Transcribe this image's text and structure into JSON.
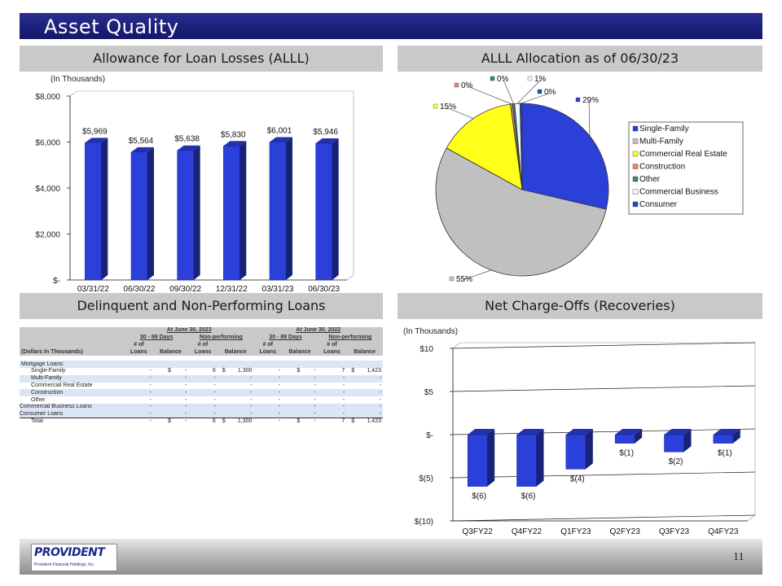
{
  "page": {
    "title": "Asset Quality",
    "page_number": "11",
    "logo_name": "PROVIDENT",
    "logo_sub": "Provident Financial Holdings, Inc."
  },
  "alll_chart": {
    "heading": "Allowance for Loan Losses (ALLL)",
    "unit_note": "(In Thousands)",
    "yticks": [
      "$8,000",
      "$6,000",
      "$4,000",
      "$2,000",
      "$-"
    ],
    "bar_labels": [
      "$5,969",
      "$5,564",
      "$5,638",
      "$5,830",
      "$6,001",
      "$5,946"
    ],
    "x_labels": [
      "03/31/22",
      "06/30/22",
      "09/30/22",
      "12/31/22",
      "03/31/23",
      "06/30/23"
    ]
  },
  "pie_chart": {
    "heading": "ALLL Allocation as of 06/30/23",
    "slice_labels": [
      "29%",
      "55%",
      "15%",
      "0%",
      "0%",
      "1%",
      "0%"
    ],
    "legend": [
      "Single-Family",
      "Multi-Family",
      "Commercial Real Estate",
      "Construction",
      "Other",
      "Commercial Business",
      "Consumer"
    ]
  },
  "nco_chart": {
    "heading": "Net Charge-Offs (Recoveries)",
    "unit_note": "(In Thousands)",
    "yticks": [
      "$10",
      "$5",
      "$-",
      "$(5)",
      "$(10)"
    ],
    "bar_labels": [
      "$(6)",
      "$(6)",
      "$(4)",
      "$(1)",
      "$(2)",
      "$(1)"
    ],
    "x_labels": [
      "Q3FY22",
      "Q4FY22",
      "Q1FY23",
      "Q2FY23",
      "Q3FY23",
      "Q4FY23"
    ]
  },
  "delinquency_table": {
    "heading": "Delinquent and Non-Performing Loans",
    "period_2023": "At June 30, 2023",
    "period_2022": "At June 30, 2022",
    "days_label": "30 - 89 Days",
    "np_label": "Non-performing",
    "of_label": "# of",
    "loans_label": "Loans",
    "balance_label": "Balance",
    "dollars_label": "(Dollars In Thousands)",
    "section_label": "Mortgage Loans:",
    "rows": [
      {
        "label": "Single-Family",
        "c": [
          "-",
          "$",
          "-",
          "6",
          "$",
          "1,300",
          "-",
          "$",
          "-",
          "7",
          "$",
          "1,423"
        ]
      },
      {
        "label": "Multi-Family",
        "c": [
          "-",
          "",
          "-",
          "-",
          "",
          "-",
          "-",
          "",
          "-",
          "-",
          "",
          "-"
        ]
      },
      {
        "label": "Commercial Real Estate",
        "c": [
          "-",
          "",
          "-",
          "-",
          "",
          "-",
          "-",
          "",
          "-",
          "-",
          "",
          "-"
        ]
      },
      {
        "label": "Construction",
        "c": [
          "-",
          "",
          "-",
          "-",
          "",
          "-",
          "-",
          "",
          "-",
          "-",
          "",
          "-"
        ]
      },
      {
        "label": "Other",
        "c": [
          "-",
          "",
          "-",
          "-",
          "",
          "-",
          "-",
          "",
          "-",
          "-",
          "",
          "-"
        ]
      },
      {
        "label": "Commercial Business Loans",
        "c": [
          "-",
          "",
          "-",
          "-",
          "",
          "-",
          "-",
          "",
          "-",
          "-",
          "",
          "-"
        ]
      },
      {
        "label": "Consumer Loans",
        "c": [
          "-",
          "",
          "-",
          "-",
          "",
          "-",
          "-",
          "",
          "-",
          "-",
          "",
          "-"
        ]
      },
      {
        "label": "Total",
        "c": [
          "-",
          "$",
          "-",
          "6",
          "$",
          "1,300",
          "-",
          "$",
          "-",
          "7",
          "$",
          "1,423"
        ]
      }
    ]
  },
  "chart_data": [
    {
      "type": "bar",
      "title": "Allowance for Loan Losses (ALLL)",
      "ylabel": "(In Thousands)",
      "categories": [
        "03/31/22",
        "06/30/22",
        "09/30/22",
        "12/31/22",
        "03/31/23",
        "06/30/23"
      ],
      "values": [
        5969,
        5564,
        5638,
        5830,
        6001,
        5946
      ],
      "ylim": [
        0,
        8000
      ],
      "grid": false,
      "color": "#2b3fd9"
    },
    {
      "type": "pie",
      "title": "ALLL Allocation as of 06/30/23",
      "categories": [
        "Single-Family",
        "Multi-Family",
        "Commercial Real Estate",
        "Construction",
        "Other",
        "Commercial Business",
        "Consumer"
      ],
      "values": [
        29,
        55,
        15,
        0,
        0,
        1,
        0
      ],
      "colors": [
        "#2b3fd9",
        "#c0c0c0",
        "#ffff1a",
        "#f08070",
        "#2a8a72",
        "#eef8ff",
        "#2346c8"
      ],
      "legend": "right"
    },
    {
      "type": "bar",
      "title": "Net Charge-Offs (Recoveries)",
      "ylabel": "(In Thousands)",
      "categories": [
        "Q3FY22",
        "Q4FY22",
        "Q1FY23",
        "Q2FY23",
        "Q3FY23",
        "Q4FY23"
      ],
      "values": [
        -6,
        -6,
        -4,
        -1,
        -2,
        -1
      ],
      "ylim": [
        -10,
        10
      ],
      "grid": true,
      "color": "#2b3fd9"
    }
  ]
}
